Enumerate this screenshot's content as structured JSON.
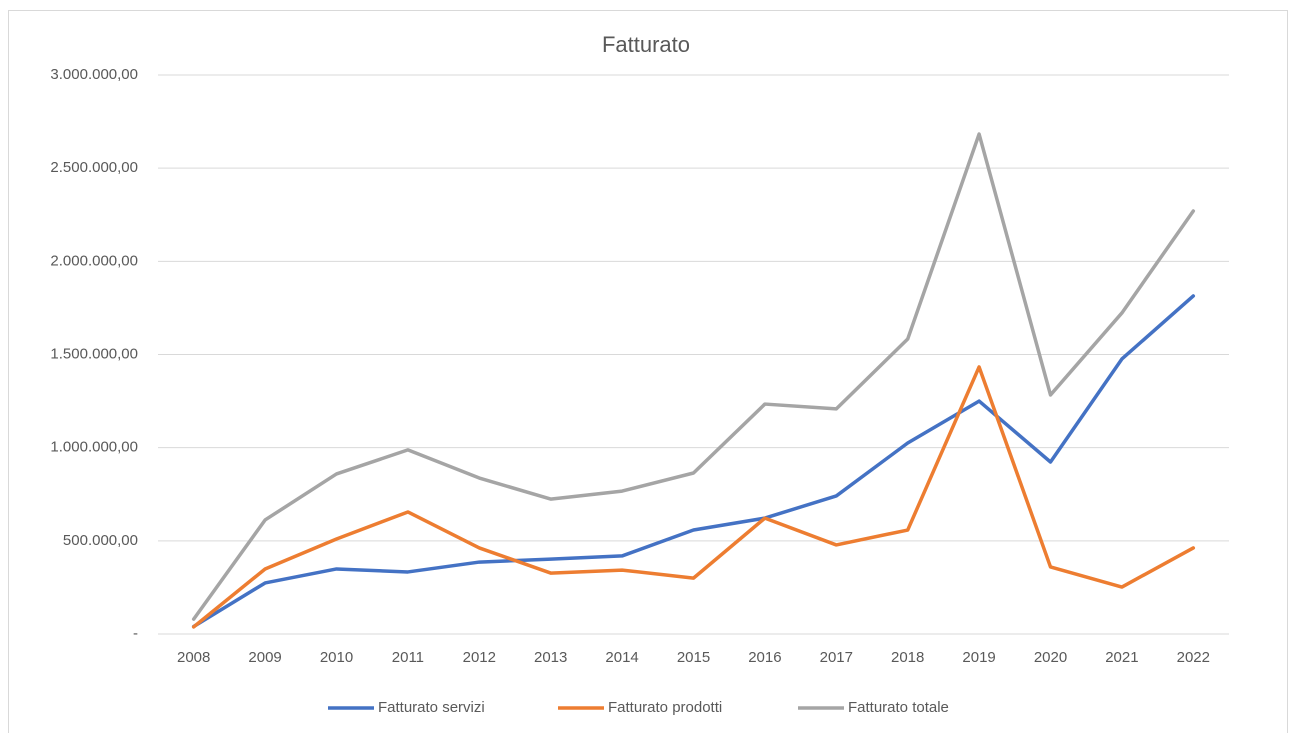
{
  "chart_data": {
    "type": "line",
    "title": "Fatturato",
    "categories": [
      "2008",
      "2009",
      "2010",
      "2011",
      "2012",
      "2013",
      "2014",
      "2015",
      "2016",
      "2017",
      "2018",
      "2019",
      "2020",
      "2021",
      "2022"
    ],
    "series": [
      {
        "name": "Fatturato servizi",
        "color": "#4472c4",
        "values": [
          40000,
          274000,
          349000,
          333000,
          386000,
          402000,
          419000,
          558000,
          622000,
          741000,
          1025000,
          1250000,
          923000,
          1476000,
          1814000
        ]
      },
      {
        "name": "Fatturato prodotti",
        "color": "#ed7d31",
        "values": [
          38000,
          349000,
          510000,
          655000,
          462000,
          327000,
          343000,
          300000,
          622000,
          478000,
          558000,
          1433000,
          360000,
          252000,
          462000
        ]
      },
      {
        "name": "Fatturato totale",
        "color": "#a5a5a5",
        "values": [
          80000,
          612000,
          859000,
          988000,
          837000,
          724000,
          767000,
          864000,
          1234000,
          1208000,
          1583000,
          2683000,
          1283000,
          1723000,
          2270000
        ]
      }
    ],
    "ylim": [
      0,
      3000000
    ],
    "yticks": [
      {
        "value": 0,
        "label": "-"
      },
      {
        "value": 500000,
        "label": "500.000,00"
      },
      {
        "value": 1000000,
        "label": "1.000.000,00"
      },
      {
        "value": 1500000,
        "label": "1.500.000,00"
      },
      {
        "value": 2000000,
        "label": "2.000.000,00"
      },
      {
        "value": 2500000,
        "label": "2.500.000,00"
      },
      {
        "value": 3000000,
        "label": "3.000.000,00"
      }
    ],
    "grid": true,
    "legend": "bottom"
  }
}
